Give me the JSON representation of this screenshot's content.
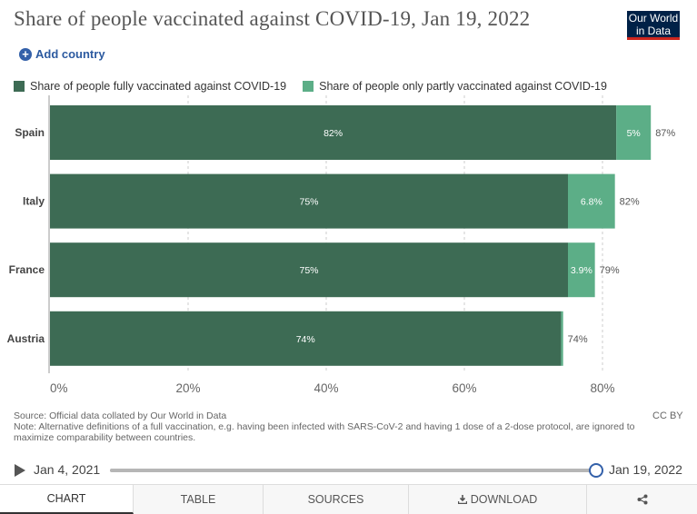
{
  "header": {
    "title": "Share of people vaccinated against COVID-19, Jan 19, 2022",
    "logo_line1": "Our World",
    "logo_line2": "in Data",
    "add_country": "Add country"
  },
  "legend": {
    "full_label": "Share of people fully vaccinated against COVID-19",
    "partial_label": "Share of people only partly vaccinated against COVID-19",
    "full_color": "#3d6b54",
    "partial_color": "#5cae87"
  },
  "chart_data": {
    "type": "bar",
    "orientation": "horizontal",
    "stacked": true,
    "categories": [
      "Spain",
      "Italy",
      "France",
      "Austria"
    ],
    "series": [
      {
        "name": "Share of people fully vaccinated against COVID-19",
        "values": [
          82,
          75,
          75,
          74
        ],
        "labels": [
          "82%",
          "75%",
          "75%",
          "74%"
        ]
      },
      {
        "name": "Share of people only partly vaccinated against COVID-19",
        "values": [
          5,
          6.8,
          3.9,
          0.3
        ],
        "labels": [
          "5%",
          "6.8%",
          "3.9%",
          ""
        ]
      }
    ],
    "totals": [
      "87%",
      "82%",
      "79%",
      "74%"
    ],
    "xlim": [
      0,
      87
    ],
    "xticks": [
      0,
      20,
      40,
      60,
      80
    ],
    "xtick_labels": [
      "0%",
      "20%",
      "40%",
      "60%",
      "80%"
    ],
    "grid": true,
    "legend_position": "top"
  },
  "footer": {
    "source": "Source: Official data collated by Our World in Data",
    "note": "Note: Alternative definitions of a full vaccination, e.g. having been infected with SARS-CoV-2 and having 1 dose of a 2-dose protocol, are ignored to maximize comparability between countries.",
    "license": "CC BY"
  },
  "timeline": {
    "start": "Jan 4, 2021",
    "end": "Jan 19, 2022"
  },
  "tabs": [
    {
      "label": "CHART"
    },
    {
      "label": "TABLE"
    },
    {
      "label": "SOURCES"
    },
    {
      "label": "DOWNLOAD"
    }
  ]
}
